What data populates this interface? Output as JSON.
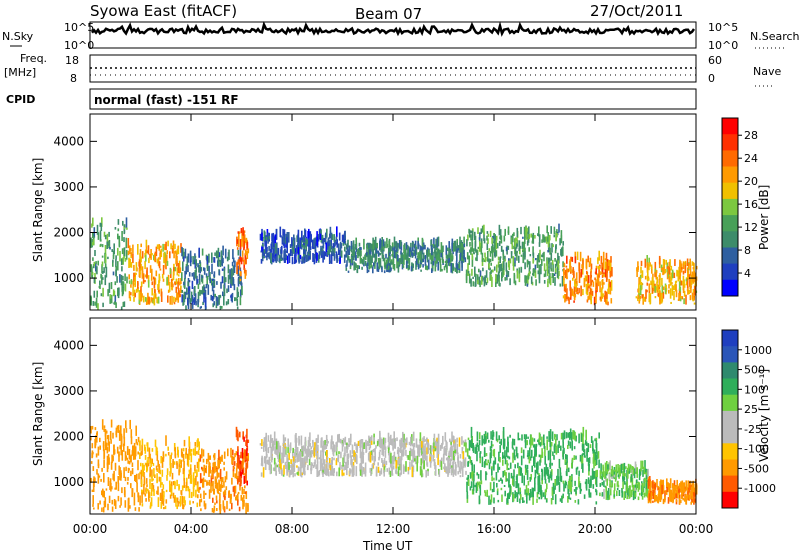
{
  "header": {
    "station": "Syowa East (fitACF)",
    "beam": "Beam 07",
    "date": "27/Oct/2011"
  },
  "top_panels": {
    "nsky_label": "N.Sky",
    "nsearch_label": "N.Search",
    "noise_ticks_left": [
      "10^5",
      "10^0"
    ],
    "noise_ticks_right": [
      "10^5",
      "10^0"
    ],
    "freq_label": "Freq.",
    "freq_unit": "[MHz]",
    "freq_ticks": [
      "18",
      "8"
    ],
    "nave_label": "Nave",
    "nave_ticks": [
      "60",
      "0"
    ],
    "cpid_label": "CPID",
    "cpid_value": "normal (fast) -151 RF"
  },
  "colors": {
    "power_scale": [
      "#0000ff",
      "#1f3fbf",
      "#2e5fa0",
      "#3d8c6a",
      "#48a058",
      "#7cc840",
      "#f0c000",
      "#ff9a00",
      "#ff6a00",
      "#ff3000",
      "#ff0000"
    ],
    "velocity_scale": [
      "#ff0000",
      "#ff5a00",
      "#ff9a00",
      "#ffc400",
      "#bbbbbb",
      "#bbbbbb",
      "#6fd040",
      "#2fae5a",
      "#2f8a6e",
      "#2a55b8",
      "#1f3fbf"
    ]
  },
  "chart_data": [
    {
      "type": "heatmap",
      "name": "power",
      "ylabel": "Slant Range [km]",
      "yticks": [
        "1000",
        "2000",
        "3000",
        "4000"
      ],
      "ylim": [
        300,
        4600
      ],
      "colorbar_label": "Power [dB]",
      "colorbar_ticks": [
        "4",
        "8",
        "12",
        "16",
        "20",
        "24",
        "28"
      ],
      "clim": [
        0,
        31
      ],
      "regions": [
        {
          "t0": 0.0,
          "t1": 0.06,
          "r0": 300,
          "r1": 2200,
          "v": 12
        },
        {
          "t0": 0.06,
          "t1": 0.15,
          "r0": 400,
          "r1": 1700,
          "v": 20
        },
        {
          "t0": 0.15,
          "t1": 0.25,
          "r0": 300,
          "r1": 1500,
          "v": 8
        },
        {
          "t0": 0.24,
          "t1": 0.26,
          "r0": 900,
          "r1": 2000,
          "v": 24
        },
        {
          "t0": 0.28,
          "t1": 0.42,
          "r0": 1300,
          "r1": 1900,
          "v": 6
        },
        {
          "t0": 0.42,
          "t1": 0.62,
          "r0": 1100,
          "r1": 1700,
          "v": 10
        },
        {
          "t0": 0.62,
          "t1": 0.78,
          "r0": 800,
          "r1": 2000,
          "v": 12
        },
        {
          "t0": 0.78,
          "t1": 0.86,
          "r0": 400,
          "r1": 1400,
          "v": 22
        },
        {
          "t0": 0.9,
          "t1": 1.0,
          "r0": 400,
          "r1": 1300,
          "v": 20
        }
      ]
    },
    {
      "type": "heatmap",
      "name": "velocity",
      "ylabel": "Slant Range [km]",
      "yticks": [
        "1000",
        "2000",
        "3000",
        "4000"
      ],
      "ylim": [
        300,
        4600
      ],
      "colorbar_label": "Velocity [m s⁻¹]",
      "colorbar_ticks": [
        "1000",
        "500",
        "100",
        "25",
        "-25",
        "-100",
        "-500",
        "-1000"
      ],
      "xlabel": "Time UT",
      "xticks": [
        "00:00",
        "04:00",
        "08:00",
        "12:00",
        "16:00",
        "20:00",
        "00:00"
      ],
      "regions": [
        {
          "t0": 0.0,
          "t1": 0.08,
          "r0": 300,
          "r1": 2200,
          "v": -300
        },
        {
          "t0": 0.08,
          "t1": 0.18,
          "r0": 400,
          "r1": 1800,
          "v": -100
        },
        {
          "t0": 0.18,
          "t1": 0.26,
          "r0": 300,
          "r1": 1600,
          "v": -400
        },
        {
          "t0": 0.24,
          "t1": 0.26,
          "r0": 900,
          "r1": 2000,
          "v": -900
        },
        {
          "t0": 0.28,
          "t1": 0.62,
          "r0": 1100,
          "r1": 1900,
          "v": 0
        },
        {
          "t0": 0.62,
          "t1": 0.84,
          "r0": 500,
          "r1": 2000,
          "v": 150
        },
        {
          "t0": 0.84,
          "t1": 0.92,
          "r0": 600,
          "r1": 1300,
          "v": 80
        },
        {
          "t0": 0.92,
          "t1": 1.0,
          "r0": 500,
          "r1": 900,
          "v": -400
        }
      ]
    }
  ]
}
